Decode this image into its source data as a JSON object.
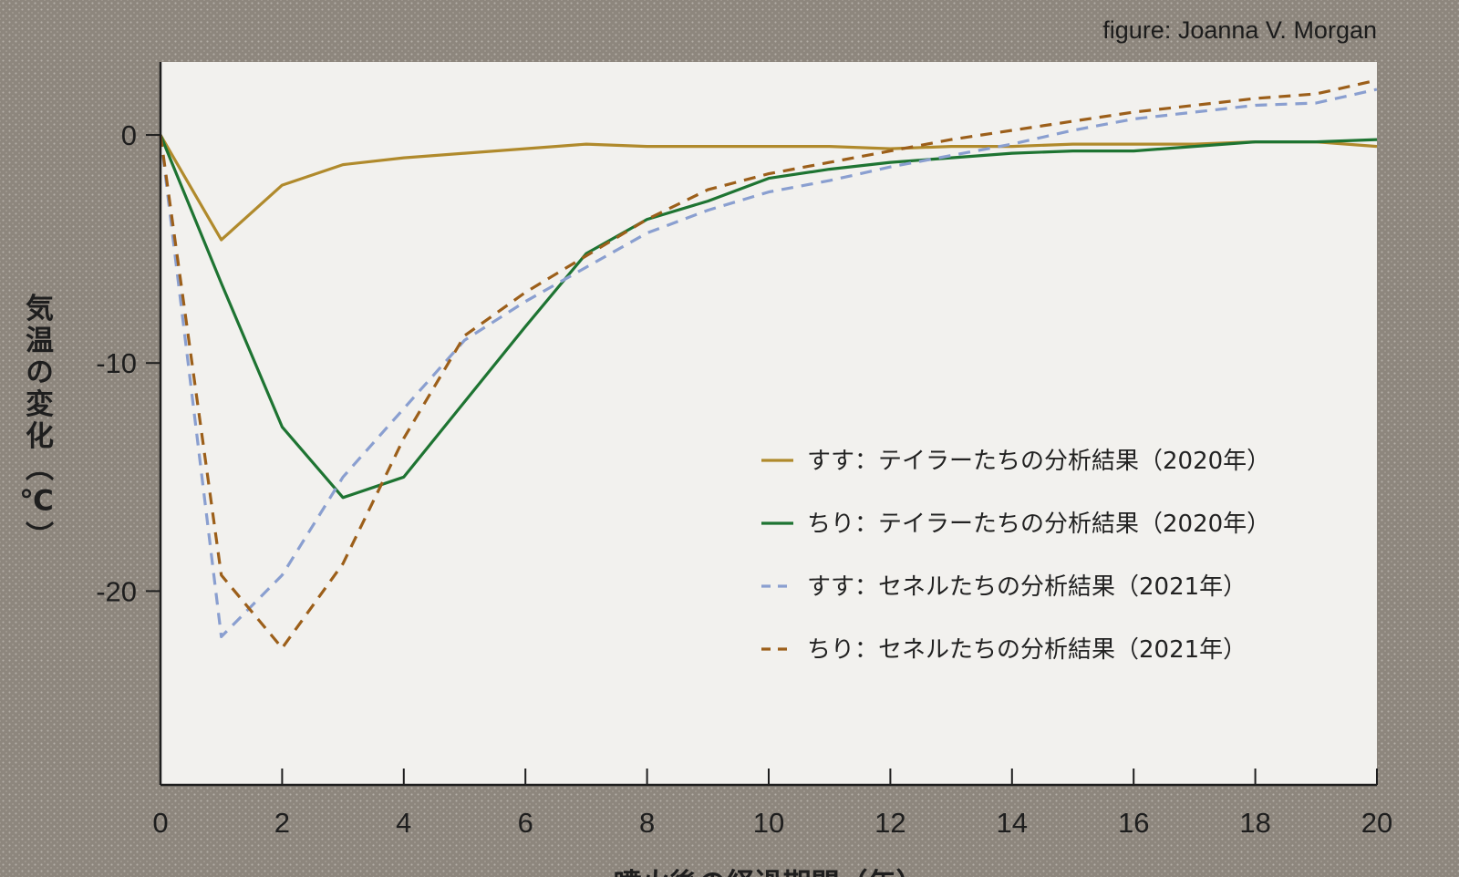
{
  "credit": "figure: Joanna V. Morgan",
  "chart_data": {
    "type": "line",
    "title": "",
    "xlabel": "噴火後の経過期間（年）",
    "ylabel": "気温の変化（℃）",
    "xlim": [
      0,
      20
    ],
    "ylim": [
      -28.5,
      3.2
    ],
    "xticks": [
      0,
      2,
      4,
      6,
      8,
      10,
      12,
      14,
      16,
      18,
      20
    ],
    "yticks": [
      0,
      -10,
      -20
    ],
    "grid": false,
    "legend_position": "center-right",
    "series": [
      {
        "name": "すす：テイラーたちの分析結果（2020年）",
        "color": "#b08a2c",
        "dash": "solid",
        "x": [
          0,
          1,
          2,
          3,
          4,
          5,
          6,
          7,
          8,
          9,
          10,
          11,
          12,
          13,
          14,
          15,
          16,
          17,
          18,
          19,
          20
        ],
        "y": [
          0,
          -4.6,
          -2.2,
          -1.3,
          -1.0,
          -0.8,
          -0.6,
          -0.4,
          -0.5,
          -0.5,
          -0.5,
          -0.5,
          -0.6,
          -0.5,
          -0.5,
          -0.4,
          -0.4,
          -0.4,
          -0.3,
          -0.3,
          -0.5
        ]
      },
      {
        "name": "ちり：テイラーたちの分析結果（2020年）",
        "color": "#1e7432",
        "dash": "solid",
        "x": [
          0,
          1,
          2,
          3,
          4,
          5,
          6,
          7,
          8,
          9,
          10,
          11,
          12,
          13,
          14,
          15,
          16,
          17,
          18,
          19,
          20
        ],
        "y": [
          0,
          -6.5,
          -12.8,
          -15.9,
          -15.0,
          -11.7,
          -8.4,
          -5.2,
          -3.7,
          -2.9,
          -1.9,
          -1.5,
          -1.2,
          -1.0,
          -0.8,
          -0.7,
          -0.7,
          -0.5,
          -0.3,
          -0.3,
          -0.2
        ]
      },
      {
        "name": "すす：セネルたちの分析結果（2021年）",
        "color": "#8a9fd0",
        "dash": "dashed",
        "x": [
          0,
          1,
          2,
          3,
          4,
          5,
          6,
          7,
          8,
          9,
          10,
          11,
          12,
          13,
          14,
          15,
          16,
          17,
          18,
          19,
          20
        ],
        "y": [
          0,
          -22.0,
          -19.3,
          -15.0,
          -12.0,
          -9.0,
          -7.3,
          -5.8,
          -4.3,
          -3.3,
          -2.5,
          -2.0,
          -1.4,
          -0.9,
          -0.4,
          0.2,
          0.7,
          1.0,
          1.3,
          1.4,
          2.0
        ]
      },
      {
        "name": "ちり：セネルたちの分析結果（2021年）",
        "color": "#9c5f1a",
        "dash": "dashed",
        "x": [
          0,
          1,
          2,
          3,
          4,
          5,
          6,
          7,
          8,
          9,
          10,
          11,
          12,
          13,
          14,
          15,
          16,
          17,
          18,
          19,
          20
        ],
        "y": [
          0,
          -19.3,
          -22.5,
          -18.8,
          -13.3,
          -8.8,
          -6.9,
          -5.3,
          -3.7,
          -2.4,
          -1.7,
          -1.2,
          -0.7,
          -0.2,
          0.2,
          0.6,
          1.0,
          1.3,
          1.6,
          1.8,
          2.4
        ]
      }
    ]
  }
}
